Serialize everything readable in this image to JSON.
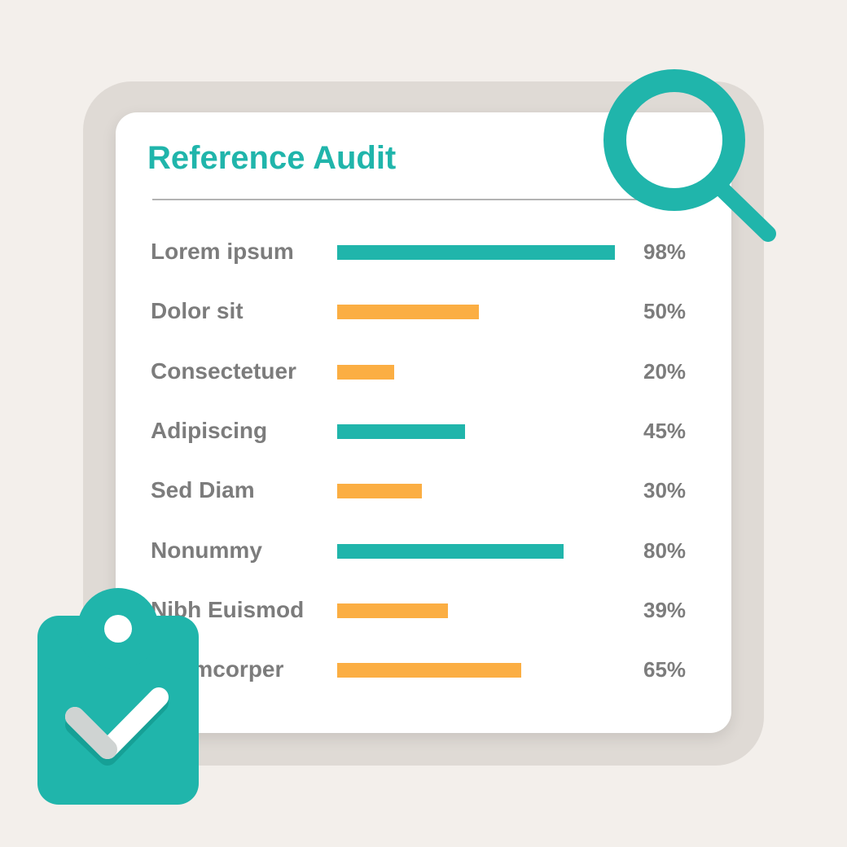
{
  "title": "Reference Audit",
  "colors": {
    "teal": "#20b5ab",
    "orange": "#fbae43",
    "text": "#7c7c7c"
  },
  "icons": {
    "magnifier": "magnifying-glass-icon",
    "clipboard": "clipboard-check-icon"
  },
  "chart_data": {
    "type": "bar",
    "orientation": "horizontal",
    "title": "Reference Audit",
    "categories": [
      "Lorem ipsum",
      "Dolor sit",
      "Consectetuer",
      "Adipiscing",
      "Sed Diam",
      "Nonummy",
      "Nibh Euismod",
      "Ullamcorper"
    ],
    "values": [
      98,
      50,
      20,
      45,
      30,
      80,
      39,
      65
    ],
    "labels": [
      "98%",
      "50%",
      "20%",
      "45%",
      "30%",
      "80%",
      "39%",
      "65%"
    ],
    "bar_colors": [
      "#20b5ab",
      "#fbae43",
      "#fbae43",
      "#20b5ab",
      "#fbae43",
      "#20b5ab",
      "#fbae43",
      "#fbae43"
    ],
    "xlim": [
      0,
      100
    ],
    "grid": false
  }
}
